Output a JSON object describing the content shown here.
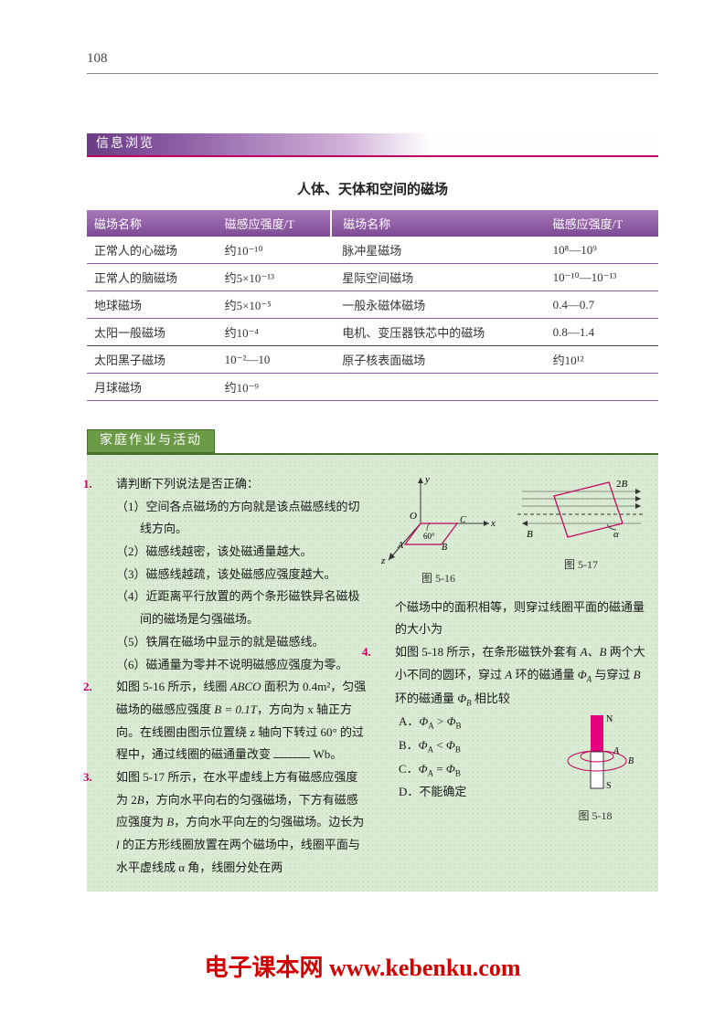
{
  "page_number": "108",
  "section1": {
    "bar_label": "信息浏览",
    "title": "人体、天体和空间的磁场",
    "headers": [
      "磁场名称",
      "磁感应强度/T",
      "  磁场名称",
      "磁感应强度/T"
    ],
    "rows": [
      [
        "正常人的心磁场",
        "约10⁻¹⁰",
        "脉冲星磁场",
        "10⁸—10⁹"
      ],
      [
        "正常人的脑磁场",
        "约5×10⁻¹³",
        "星际空间磁场",
        "10⁻¹⁰—10⁻¹³"
      ],
      [
        "地球磁场",
        "约5×10⁻⁵",
        "一般永磁体磁场",
        "0.4—0.7"
      ],
      [
        "太阳一般磁场",
        "约10⁻⁴",
        "电机、变压器铁芯中的磁场",
        "0.8—1.4"
      ],
      [
        "太阳黑子磁场",
        "10⁻²—10",
        "原子核表面磁场",
        "约10¹²"
      ],
      [
        "月球磁场",
        "约10⁻⁹",
        "",
        ""
      ]
    ]
  },
  "section2": {
    "bar_label": "家庭作业与活动",
    "fig_captions": {
      "f16": "图 5-16",
      "f17": "图 5-17",
      "f18": "图 5-18"
    },
    "q1": {
      "num": "1.",
      "stem": "请判断下列说法是否正确：",
      "items": [
        "（1）空间各点磁场的方向就是该点磁感线的切线方向。",
        "（2）磁感线越密，该处磁通量越大。",
        "（3）磁感线越疏，该处磁感应强度越大。",
        "（4）近距离平行放置的两个条形磁铁异名磁极间的磁场是匀强磁场。",
        "（5）铁屑在磁场中显示的就是磁感线。",
        "（6）磁通量为零并不说明磁感应强度为零。"
      ]
    },
    "q2": {
      "num": "2.",
      "text_a": "如图 5-16 所示，线圈 ",
      "abco": "ABCO",
      "text_b": " 面积为 0.4m²，匀强磁场的磁感应强度 ",
      "b_eq": "B = 0.1T",
      "text_c": "，方向为 x 轴正方向。在线圈由图示位置绕 z 轴向下转过 60° 的过程中，通过线圈的磁通量改变 ",
      "unit": " Wb。"
    },
    "q3": {
      "num": "3.",
      "text_a": "如图 5-17 所示，在水平虚线上方有磁感应强度为 2",
      "b1": "B",
      "text_b": "，方向水平向右的匀强磁场，下方有磁感应强度为 ",
      "b2": "B",
      "text_c": "，方向水平向左的匀强磁场。边长为 ",
      "l": "l",
      "text_d": " 的正方形线圈放置在两个磁场中，线圈平面与水平虚线成 α 角，线圈分处在两"
    },
    "q3_cont": "个磁场中的面积相等，则穿过线圈平面的磁通量的大小为",
    "q4": {
      "num": "4.",
      "text_a": "如图 5-18 所示，在条形磁铁外套有 ",
      "ab": "A、B",
      "text_b": " 两个大小不同的圆环，穿过 ",
      "a": "A",
      "text_c": " 环的磁通量 ",
      "phi_a": "Φ_A",
      "text_d": " 与穿过 ",
      "b": "B",
      "text_e": " 环的磁通量 ",
      "phi_b": "Φ_B",
      "text_f": " 相比较",
      "options": {
        "A": "A．Φ_A > Φ_B",
        "B": "B．Φ_A < Φ_B",
        "C": "C．Φ_A = Φ_B",
        "D": "D．不能确定"
      }
    }
  },
  "watermark": {
    "cn": "电子课本网",
    "url": " www.kebenku.com"
  },
  "colors": {
    "accent_purple": "#7c4a95",
    "accent_magenta": "#c20064",
    "accent_green": "#6c9b48",
    "hw_bg": "#d9ebd2",
    "fig_line": "#c2005c"
  }
}
